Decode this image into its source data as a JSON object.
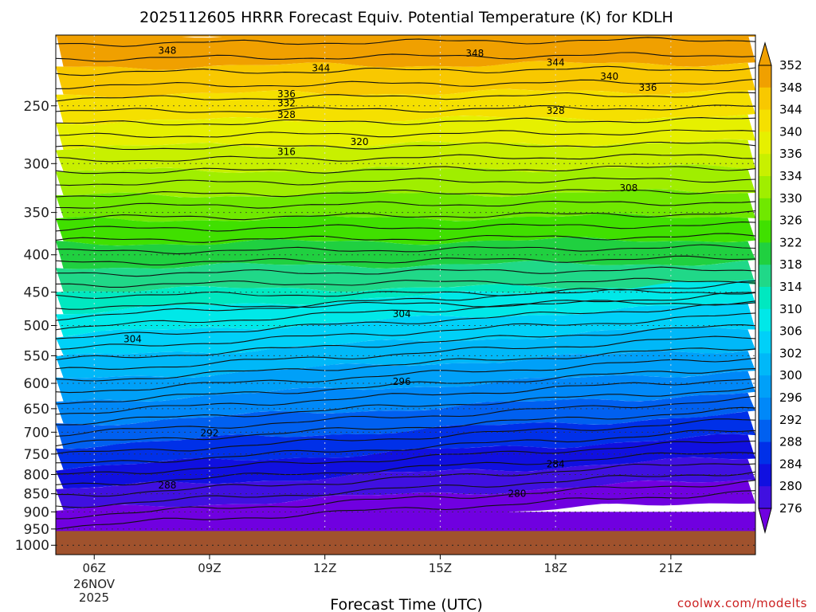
{
  "chart_data": {
    "type": "contour",
    "title": "2025112605 HRRR Forecast Equiv. Potential Temperature (K) for KDLH",
    "xlabel": "Forecast Time (UTC)",
    "ylabel": "",
    "credit": "coolwx.com/modelts",
    "x_ticks": [
      "06Z",
      "09Z",
      "12Z",
      "15Z",
      "18Z",
      "21Z"
    ],
    "x_date_lines": [
      "26NOV",
      "2025"
    ],
    "x_range_hours": [
      5.0,
      23.2
    ],
    "y_ticks": [
      250,
      300,
      350,
      400,
      450,
      500,
      550,
      600,
      650,
      700,
      750,
      800,
      850,
      900,
      950,
      1000
    ],
    "y_range_hpa": [
      200,
      1030
    ],
    "surface_pressure_hpa": 956,
    "colorbar": {
      "labels": [
        352,
        348,
        344,
        340,
        336,
        334,
        330,
        326,
        322,
        318,
        314,
        310,
        306,
        302,
        300,
        296,
        292,
        288,
        284,
        280,
        276
      ],
      "colors": [
        "#f0a000",
        "#f8c800",
        "#f5e000",
        "#e6f000",
        "#c8f000",
        "#a0ee00",
        "#70e800",
        "#40e000",
        "#20d040",
        "#20d888",
        "#00e8c0",
        "#00e8e8",
        "#00d0f8",
        "#00b8f8",
        "#00a0f8",
        "#0088f8",
        "#0060f0",
        "#0030e8",
        "#1010e0",
        "#4010e0",
        "#7000e0"
      ]
    },
    "contour_labels": [
      {
        "text": "348",
        "time": 7.9,
        "p": 210
      },
      {
        "text": "348",
        "time": 15.9,
        "p": 212
      },
      {
        "text": "344",
        "time": 11.9,
        "p": 222
      },
      {
        "text": "344",
        "time": 18.0,
        "p": 218
      },
      {
        "text": "340",
        "time": 19.4,
        "p": 228
      },
      {
        "text": "336",
        "time": 20.4,
        "p": 236
      },
      {
        "text": "336",
        "time": 11.0,
        "p": 241
      },
      {
        "text": "332",
        "time": 11.0,
        "p": 248
      },
      {
        "text": "328",
        "time": 11.0,
        "p": 257
      },
      {
        "text": "328",
        "time": 18.0,
        "p": 254
      },
      {
        "text": "320",
        "time": 12.9,
        "p": 280
      },
      {
        "text": "316",
        "time": 11.0,
        "p": 289
      },
      {
        "text": "308",
        "time": 19.9,
        "p": 324
      },
      {
        "text": "304",
        "time": 7.0,
        "p": 522
      },
      {
        "text": "304",
        "time": 14.0,
        "p": 482
      },
      {
        "text": "296",
        "time": 14.0,
        "p": 597
      },
      {
        "text": "292",
        "time": 9.0,
        "p": 702
      },
      {
        "text": "288",
        "time": 7.9,
        "p": 828
      },
      {
        "text": "284",
        "time": 18.0,
        "p": 774
      },
      {
        "text": "280",
        "time": 17.0,
        "p": 850
      }
    ]
  }
}
